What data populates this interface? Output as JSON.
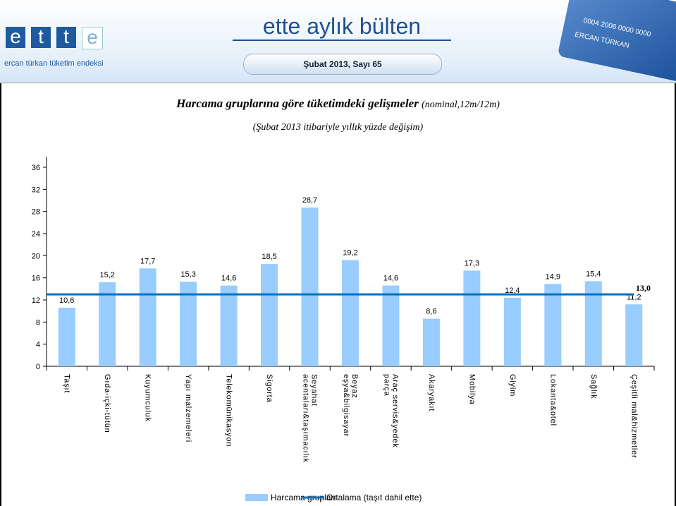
{
  "header": {
    "logo_letters": [
      "e",
      "t",
      "t",
      "e"
    ],
    "logo_caption": "ercan türkan tüketim endeksi",
    "title": "ette aylık bülten",
    "issue": "Şubat 2013, Sayı 65",
    "card_number": "0004 2006 0000 0000",
    "card_name": "ERCAN TÜRKAN"
  },
  "chart_data": {
    "type": "bar",
    "title": "Harcama gruplarına göre tüketimdeki gelişmeler",
    "title_note": "(nominal,12m/12m)",
    "subtitle": "(Şubat 2013 itibariyle yıllık yüzde değişim)",
    "categories": [
      "Taşıt",
      "Gıda-içki-tütün",
      "Kuyumculuk",
      "Yapı malzemeleri",
      "Telekomünikasyon",
      "Sigorta",
      "Seyahat\nacentaları&taşımacılık",
      "Beyaz\neşya&bilgisayar",
      "Araç servis&yedek\nparça",
      "Akaryakıt",
      "Mobilya",
      "Giyim",
      "Lokanta&otel",
      "Sağlık",
      "Çeşitli mal&hizmetler"
    ],
    "series": [
      {
        "name": "Harcama grupları",
        "color": "#99ccff",
        "values": [
          10.6,
          15.2,
          17.7,
          15.3,
          14.6,
          18.5,
          28.7,
          19.2,
          14.6,
          8.6,
          17.3,
          12.4,
          14.9,
          15.4,
          11.2
        ],
        "value_labels": [
          "10,6",
          "15,2",
          "17,7",
          "15,3",
          "14,6",
          "18,5",
          "28,7",
          "19,2",
          "14,6",
          "8,6",
          "17,3",
          "12,4",
          "14,9",
          "15,4",
          "11,2"
        ]
      }
    ],
    "reference_line": {
      "name": "Ortalama (taşıt dahil ette)",
      "value": 13.0,
      "label": "13,0",
      "color": "#0070c0"
    },
    "ylim": [
      0,
      36
    ],
    "yticks": [
      0,
      4,
      8,
      12,
      16,
      20,
      24,
      28,
      32,
      36
    ]
  }
}
